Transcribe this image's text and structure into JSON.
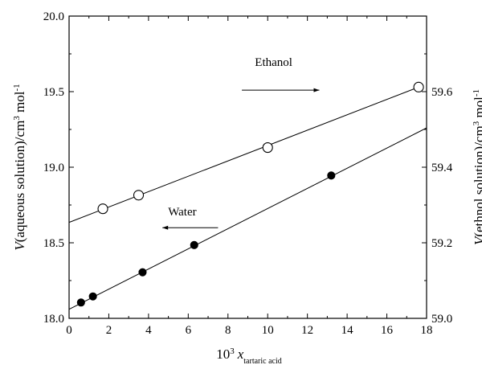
{
  "chart_data": {
    "type": "scatter",
    "x_axis": {
      "label_base": "10",
      "label_sup": "3",
      "label_var": "x",
      "label_sub": "tartaric acid",
      "range": [
        0,
        18
      ],
      "ticks": [
        "0",
        "2",
        "4",
        "6",
        "8",
        "10",
        "12",
        "14",
        "16",
        "18"
      ]
    },
    "y_left": {
      "label_italic": "V",
      "label_main": "(aqueous solution)/cm",
      "label_sup": "3",
      "label_tail": " mol",
      "label_sup2": "-1",
      "range": [
        18.0,
        20.0
      ],
      "ticks": [
        "18.0",
        "18.5",
        "19.0",
        "19.5",
        "20.0"
      ]
    },
    "y_right": {
      "label_italic": "V",
      "label_main": "(ethnol solution)/cm",
      "label_sup": "3",
      "label_tail": " mol",
      "label_sup2": "-1",
      "range": [
        59.0,
        59.8
      ],
      "ticks": [
        "59.0",
        "59.2",
        "59.4",
        "59.6"
      ]
    },
    "series": [
      {
        "name": "Ethanol",
        "axis": "right",
        "marker": "open-circle",
        "points": [
          [
            1.7,
            59.29
          ],
          [
            3.5,
            59.326
          ],
          [
            10.0,
            59.452
          ],
          [
            17.6,
            59.612
          ]
        ],
        "fit": [
          [
            0,
            59.254
          ],
          [
            17.6,
            59.612
          ]
        ]
      },
      {
        "name": "Water",
        "axis": "left",
        "marker": "filled-circle",
        "points": [
          [
            0.6,
            18.105
          ],
          [
            1.2,
            18.145
          ],
          [
            3.7,
            18.305
          ],
          [
            6.3,
            18.485
          ],
          [
            13.2,
            18.945
          ]
        ],
        "fit": [
          [
            0,
            18.06
          ],
          [
            18,
            19.26
          ]
        ]
      }
    ],
    "annotations": [
      {
        "text": "Ethanol",
        "x": 10.3,
        "y_left": 19.67,
        "arrow_from": 8.7,
        "arrow_to": 12.6,
        "arrow_y_left": 19.51
      },
      {
        "text": "Water",
        "x": 5.7,
        "y_left": 18.68,
        "arrow_from": 7.5,
        "arrow_to": 4.7,
        "arrow_y_left": 18.6
      }
    ],
    "grid": false
  }
}
